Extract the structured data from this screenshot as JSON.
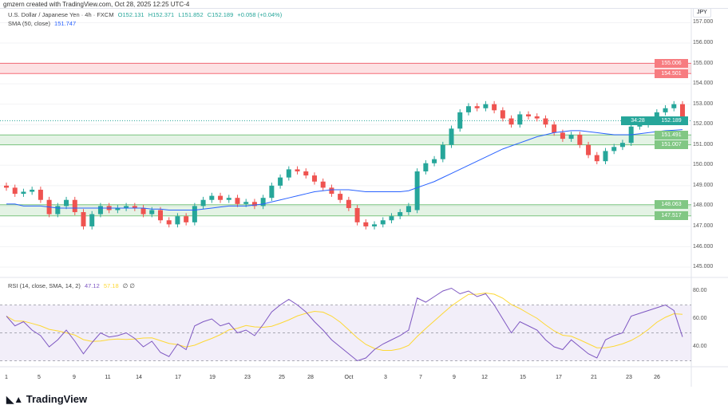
{
  "credit": "gmzern created with TradingView.com, Oct 28, 2025 12:25 UTC-4",
  "legend": {
    "symbol": "U.S. Dollar / Japanese Yen · 4h · FXCM",
    "o": "O152.131",
    "h": "H152.371",
    "l": "L151.852",
    "c": "C152.189",
    "chg": "+0.058 (+0.04%)",
    "sma_label": "SMA (50, close)",
    "sma_value": "151.747"
  },
  "rsi_legend": {
    "label": "RSI (14, close, SMA, 14, 2)",
    "rsi": "47.12",
    "sma": "57.18",
    "extra": "∅ ∅"
  },
  "currency": "JPY",
  "price_axis": [
    "157.000",
    "156.000",
    "155.000",
    "154.000",
    "153.000",
    "152.000",
    "151.000",
    "150.000",
    "149.000",
    "148.000",
    "147.000",
    "146.000",
    "145.000"
  ],
  "rsi_axis": [
    "80.00",
    "60.00",
    "40.00"
  ],
  "price_tags": [
    {
      "text": "155.006",
      "value": 155.006,
      "color": "#f77c80"
    },
    {
      "text": "154.501",
      "value": 154.501,
      "color": "#f77c80"
    },
    {
      "text": "152.189",
      "value": 152.189,
      "color": "#26a69a",
      "sub": "34:28"
    },
    {
      "text": "151.491",
      "value": 151.491,
      "color": "#81c784"
    },
    {
      "text": "151.007",
      "value": 151.007,
      "color": "#81c784"
    },
    {
      "text": "148.063",
      "value": 148.063,
      "color": "#81c784"
    },
    {
      "text": "147.517",
      "value": 147.517,
      "color": "#81c784"
    }
  ],
  "zones": [
    {
      "top": 155.006,
      "bottom": 154.501,
      "color": "#f23645"
    },
    {
      "top": 151.491,
      "bottom": 151.007,
      "color": "#4caf50"
    },
    {
      "top": 148.063,
      "bottom": 147.517,
      "color": "#4caf50"
    }
  ],
  "x_labels": [
    "1",
    "5",
    "9",
    "11",
    "14",
    "17",
    "19",
    "23",
    "25",
    "28",
    "Oct",
    "3",
    "7",
    "9",
    "12",
    "15",
    "17",
    "21",
    "23",
    "26"
  ],
  "logo": "TradingView",
  "chart_data": {
    "type": "candlestick",
    "colors": {
      "up": "#26a69a",
      "down": "#ef5350",
      "sma": "#2962ff",
      "rsi": "#7e57c2",
      "rsi_sma": "#fdd835"
    },
    "ylim": [
      145,
      157
    ],
    "closes": [
      148.9,
      148.6,
      148.7,
      148.8,
      148.3,
      147.6,
      148.0,
      148.3,
      147.7,
      147.0,
      147.6,
      148.0,
      147.8,
      147.9,
      148.0,
      147.9,
      147.6,
      147.8,
      147.3,
      147.1,
      147.5,
      147.2,
      148.0,
      148.3,
      148.5,
      148.3,
      148.4,
      148.1,
      148.2,
      148.0,
      148.4,
      149.0,
      149.4,
      149.8,
      149.7,
      149.5,
      149.2,
      148.9,
      148.6,
      148.3,
      147.9,
      147.2,
      147.0,
      147.1,
      147.3,
      147.5,
      147.7,
      148.0,
      149.7,
      150.1,
      150.3,
      151.0,
      151.8,
      152.6,
      152.9,
      152.8,
      153.0,
      152.7,
      152.3,
      152.0,
      152.5,
      152.4,
      152.3,
      152.0,
      151.6,
      151.3,
      151.5,
      151.0,
      150.5,
      150.2,
      150.7,
      150.9,
      151.1,
      151.9,
      152.0,
      152.2,
      152.6,
      152.8,
      153.0,
      152.189
    ],
    "sma": [
      148.1,
      148.1,
      148.0,
      148.0,
      148.0,
      147.95,
      147.9,
      147.9,
      147.9,
      147.9,
      147.9,
      147.9,
      147.9,
      147.9,
      147.9,
      147.9,
      147.9,
      147.85,
      147.85,
      147.8,
      147.8,
      147.8,
      147.8,
      147.85,
      147.9,
      147.95,
      148.0,
      148.0,
      148.0,
      148.05,
      148.1,
      148.2,
      148.3,
      148.4,
      148.5,
      148.6,
      148.7,
      148.75,
      148.8,
      148.8,
      148.8,
      148.75,
      148.7,
      148.7,
      148.7,
      148.7,
      148.7,
      148.75,
      148.9,
      149.05,
      149.2,
      149.4,
      149.6,
      149.8,
      150.0,
      150.2,
      150.4,
      150.6,
      150.8,
      150.95,
      151.1,
      151.25,
      151.4,
      151.5,
      151.6,
      151.65,
      151.7,
      151.7,
      151.65,
      151.6,
      151.55,
      151.5,
      151.5,
      151.5,
      151.55,
      151.6,
      151.65,
      151.7,
      151.72,
      151.747
    ],
    "rsi": [
      62,
      55,
      58,
      52,
      48,
      40,
      45,
      52,
      44,
      35,
      43,
      50,
      47,
      48,
      50,
      46,
      40,
      44,
      36,
      33,
      42,
      38,
      55,
      58,
      60,
      55,
      57,
      50,
      52,
      48,
      56,
      65,
      70,
      74,
      70,
      65,
      58,
      52,
      45,
      40,
      35,
      30,
      32,
      38,
      42,
      45,
      48,
      52,
      75,
      72,
      76,
      80,
      82,
      78,
      80,
      76,
      78,
      70,
      60,
      50,
      58,
      55,
      52,
      45,
      40,
      38,
      45,
      40,
      35,
      32,
      45,
      48,
      50,
      62,
      64,
      66,
      68,
      70,
      66,
      47.12
    ],
    "rsi_levels": [
      70,
      50,
      30
    ]
  }
}
